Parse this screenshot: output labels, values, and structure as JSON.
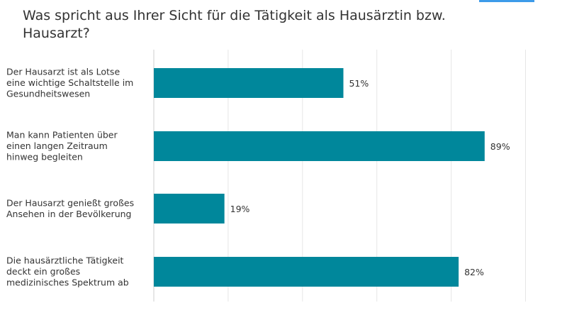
{
  "chart_data": {
    "type": "bar",
    "orientation": "horizontal",
    "title": "Was spricht aus Ihrer Sicht für die Tätigkeit als Hausärztin bzw. Hausarzt?",
    "categories": [
      [
        "Der Hausarzt ist als Lotse",
        "eine wichtige Schaltstelle im",
        "Gesundheitswesen"
      ],
      [
        "Man kann Patienten über",
        "einen langen Zeitraum",
        "hinweg begleiten"
      ],
      [
        "Der Hausarzt genießt großes",
        "Ansehen in der Bevölkerung"
      ],
      [
        "Die hausärztliche Tätigkeit",
        "deckt ein großes",
        "medizinisches Spektrum ab"
      ]
    ],
    "values": [
      51,
      89,
      19,
      82
    ],
    "value_labels": [
      "51%",
      "89%",
      "19%",
      "82%"
    ],
    "xlim": [
      0,
      100
    ],
    "grid": true,
    "bar_color": "#00879b",
    "grid_color": "#e6e6e6"
  }
}
